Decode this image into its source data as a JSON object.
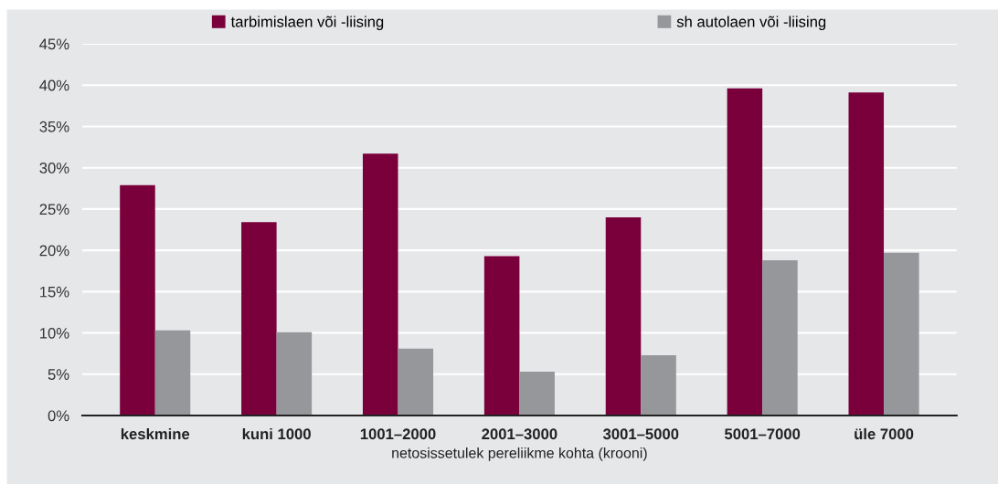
{
  "chart_data": {
    "type": "bar",
    "xlabel": "netosissetulek pereliikme kohta (krooni)",
    "categories": [
      "keskmine",
      "kuni 1000",
      "1001–2000",
      "2001–3000",
      "3001–5000",
      "5001–7000",
      "üle 7000"
    ],
    "series": [
      {
        "name": "tarbimislaen või -liising",
        "color": "#7a003c",
        "values": [
          27.9,
          23.4,
          31.7,
          19.3,
          24.0,
          39.6,
          39.1
        ]
      },
      {
        "name": "sh autolaen või -liising",
        "color": "#96979b",
        "values": [
          10.3,
          10.1,
          8.1,
          5.3,
          7.3,
          18.8,
          19.7
        ]
      }
    ],
    "ylim": [
      0,
      45
    ],
    "yticks": [
      {
        "value": 0,
        "label": "0%"
      },
      {
        "value": 5,
        "label": "5%"
      },
      {
        "value": 10,
        "label": "10%"
      },
      {
        "value": 15,
        "label": "15%"
      },
      {
        "value": 20,
        "label": "20%"
      },
      {
        "value": 25,
        "label": "25%"
      },
      {
        "value": 30,
        "label": "30%"
      },
      {
        "value": 35,
        "label": "35%"
      },
      {
        "value": 40,
        "label": "40%"
      },
      {
        "value": 45,
        "label": "45%"
      }
    ],
    "grid": "y",
    "legend": "top"
  }
}
